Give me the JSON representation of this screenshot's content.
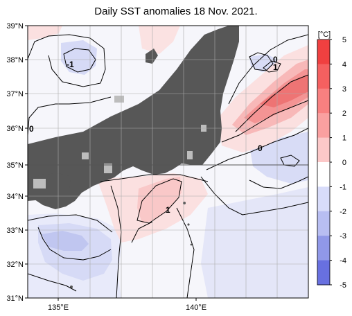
{
  "title": "Daily SST anomalies 18 Nov. 2021.",
  "map": {
    "lat_ticks": [
      "39°N",
      "38°N",
      "37°N",
      "36°N",
      "35°N",
      "34°N",
      "33°N",
      "32°N",
      "31°N"
    ],
    "lon_ticks": [
      "135°E",
      "140°E"
    ],
    "contour_labels": [
      "-1",
      "0",
      "1",
      "0",
      "-1",
      "0",
      "1"
    ]
  },
  "colorbar": {
    "unit_label": "[°C]",
    "tick_labels": [
      "5",
      "4",
      "3",
      "2",
      "1",
      "0",
      "-1",
      "-2",
      "-3",
      "-4",
      "-5"
    ],
    "colors": [
      "#f04040",
      "#f56060",
      "#f88080",
      "#faa0a0",
      "#fcc8c8",
      "#ffffff",
      "#d8dcfa",
      "#b8bef2",
      "#9098e8",
      "#6870e0",
      "#3840e0"
    ]
  },
  "colors": {
    "land": "#575757",
    "warm_anomaly": "#f7a8a8",
    "cool_anomaly": "#c8ccf4"
  }
}
